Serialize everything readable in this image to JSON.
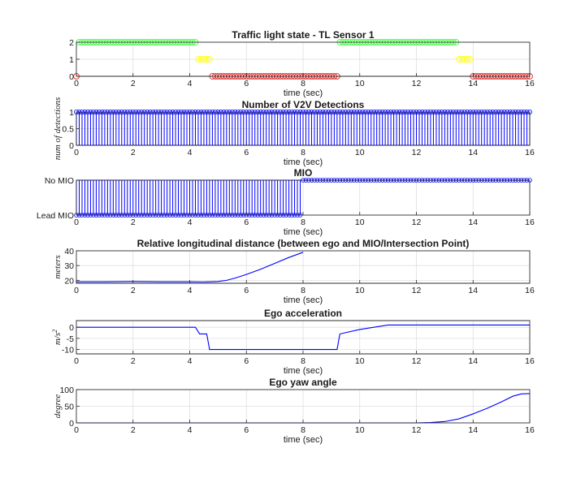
{
  "colors": {
    "blue": "#0000ff",
    "green": "#33ff33",
    "yellow": "#ffff00",
    "red": "#e02020",
    "grid": "#dfdfdf",
    "axis": "#262626"
  },
  "chart_data": [
    {
      "id": "tl",
      "type": "scatter",
      "title": "Traffic light state - TL Sensor 1",
      "xlabel": "time (sec)",
      "ylabel": "",
      "xlim": [
        0,
        16
      ],
      "ylim": [
        0,
        2
      ],
      "xticks": [
        "0",
        "2",
        "4",
        "6",
        "8",
        "10",
        "12",
        "14",
        "16"
      ],
      "yticks": [
        {
          "v": 0,
          "label": "0"
        },
        {
          "v": 1,
          "label": "1"
        },
        {
          "v": 2,
          "label": "2"
        }
      ],
      "marker_step": 0.1,
      "segments": [
        {
          "state": "red",
          "x0": 0.0,
          "x1": 0.0,
          "y": 0
        },
        {
          "state": "green",
          "x0": 0.1,
          "x1": 4.2,
          "y": 2
        },
        {
          "state": "yellow",
          "x0": 4.3,
          "x1": 4.7,
          "y": 1
        },
        {
          "state": "red",
          "x0": 4.8,
          "x1": 9.2,
          "y": 0
        },
        {
          "state": "green",
          "x0": 9.3,
          "x1": 13.4,
          "y": 2
        },
        {
          "state": "yellow",
          "x0": 13.5,
          "x1": 13.9,
          "y": 1
        },
        {
          "state": "red",
          "x0": 14.0,
          "x1": 16.0,
          "y": 0
        }
      ]
    },
    {
      "id": "v2v",
      "type": "stem",
      "title": "Number of V2V Detections",
      "xlabel": "time (sec)",
      "ylabel": "num of detections",
      "xlim": [
        0,
        16
      ],
      "ylim": [
        0,
        1
      ],
      "xticks": [
        "0",
        "2",
        "4",
        "6",
        "8",
        "10",
        "12",
        "14",
        "16"
      ],
      "yticks": [
        {
          "v": 0,
          "label": "0"
        },
        {
          "v": 0.5,
          "label": "0.5"
        },
        {
          "v": 1,
          "label": "1"
        }
      ],
      "x_start": 0,
      "x_end": 16,
      "x_step": 0.1,
      "value": 1
    },
    {
      "id": "mio",
      "type": "stem",
      "title": "MIO",
      "xlabel": "time (sec)",
      "ylabel": "",
      "xlim": [
        0,
        16
      ],
      "ylim": [
        0,
        1
      ],
      "xticks": [
        "0",
        "2",
        "4",
        "6",
        "8",
        "10",
        "12",
        "14",
        "16"
      ],
      "yticks": [
        {
          "v": 0,
          "label": "Lead MIO"
        },
        {
          "v": 1,
          "label": "No MIO"
        }
      ],
      "x_start": 0,
      "x_end": 16,
      "x_step": 0.1,
      "lead_until": 7.9,
      "lead_value": 0,
      "none_value": 1
    },
    {
      "id": "dist",
      "type": "line",
      "title": "Relative longitudinal distance (between ego and MIO/Intersection Point)",
      "xlabel": "time (sec)",
      "ylabel": "meters",
      "xlim": [
        0,
        16
      ],
      "ylim": [
        18,
        40
      ],
      "xticks": [
        "0",
        "2",
        "4",
        "6",
        "8",
        "10",
        "12",
        "14",
        "16"
      ],
      "yticks": [
        {
          "v": 20,
          "label": "20"
        },
        {
          "v": 30,
          "label": "30"
        },
        {
          "v": 40,
          "label": "40"
        }
      ],
      "x": [
        0,
        1,
        2,
        3,
        4,
        4.5,
        5,
        5.3,
        5.6,
        6,
        6.5,
        7,
        7.5,
        8
      ],
      "y": [
        19,
        19,
        19.2,
        19,
        19,
        18.9,
        19.2,
        20,
        21.5,
        24,
        27.5,
        31.5,
        35.5,
        39
      ]
    },
    {
      "id": "acc",
      "type": "line",
      "title": "Ego acceleration",
      "xlabel": "time (sec)",
      "ylabel": "m/s",
      "ylabel_sup": "2",
      "xlim": [
        0,
        16
      ],
      "ylim": [
        -12,
        3
      ],
      "xticks": [
        "0",
        "2",
        "4",
        "6",
        "8",
        "10",
        "12",
        "14",
        "16"
      ],
      "yticks": [
        {
          "v": -10,
          "label": "-10"
        },
        {
          "v": -5,
          "label": "-5"
        },
        {
          "v": 0,
          "label": "0"
        }
      ],
      "x": [
        0,
        4.2,
        4.35,
        4.6,
        4.7,
        9.2,
        9.3,
        10,
        11,
        16
      ],
      "y": [
        0,
        0,
        -3,
        -3,
        -10,
        -10,
        -3,
        -1,
        1,
        1
      ]
    },
    {
      "id": "yaw",
      "type": "line",
      "title": "Ego yaw angle",
      "xlabel": "time (sec)",
      "ylabel": "degree",
      "xlim": [
        0,
        16
      ],
      "ylim": [
        0,
        100
      ],
      "xticks": [
        "0",
        "2",
        "4",
        "6",
        "8",
        "10",
        "12",
        "14",
        "16"
      ],
      "yticks": [
        {
          "v": 0,
          "label": "0"
        },
        {
          "v": 50,
          "label": "50"
        },
        {
          "v": 100,
          "label": "100"
        }
      ],
      "x": [
        0,
        12,
        12.5,
        13,
        13.5,
        14,
        14.5,
        15,
        15.4,
        15.7,
        16
      ],
      "y": [
        0,
        0,
        1,
        4,
        12,
        27,
        44,
        63,
        80,
        87,
        88
      ]
    }
  ]
}
